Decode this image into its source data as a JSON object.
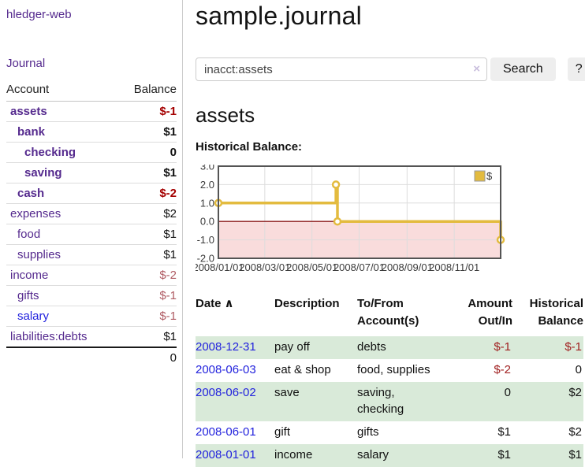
{
  "colors": {
    "purple_link": "#552a8e",
    "blue_link": "#2222dd",
    "negative_strong": "#a40000",
    "negative_muted": "#b05c64",
    "negative_table": "#a02020",
    "row_stripe_green": "#d9ead9",
    "chart_gold": "#e3bb3f"
  },
  "sidebar": {
    "app_title": "hledger-web",
    "nav_journal": "Journal",
    "accounts_table": {
      "headers": [
        "Account",
        "Balance"
      ],
      "rows": [
        {
          "account": "assets",
          "indent": 1,
          "bold": true,
          "balance": "$-1",
          "balance_style": "neg-strong"
        },
        {
          "account": "bank",
          "indent": 2,
          "bold": true,
          "balance": "$1",
          "balance_style": "pos"
        },
        {
          "account": "checking",
          "indent": 3,
          "bold": true,
          "balance": "0",
          "balance_style": "pos"
        },
        {
          "account": "saving",
          "indent": 3,
          "bold": true,
          "balance": "$1",
          "balance_style": "pos"
        },
        {
          "account": "cash",
          "indent": 2,
          "bold": true,
          "balance": "$-2",
          "balance_style": "neg-strong"
        },
        {
          "account": "expenses",
          "indent": 1,
          "bold": false,
          "balance": "$2",
          "balance_style": "pos"
        },
        {
          "account": "food",
          "indent": 2,
          "bold": false,
          "balance": "$1",
          "balance_style": "pos"
        },
        {
          "account": "supplies",
          "indent": 2,
          "bold": false,
          "balance": "$1",
          "balance_style": "pos"
        },
        {
          "account": "income",
          "indent": 1,
          "bold": false,
          "balance": "$-2",
          "balance_style": "neg-muted"
        },
        {
          "account": "gifts",
          "indent": 2,
          "bold": false,
          "balance": "$-1",
          "balance_style": "neg-muted"
        },
        {
          "account": "salary",
          "indent": 2,
          "bold": false,
          "balance": "$-1",
          "balance_style": "neg-muted",
          "link_color": "blue"
        },
        {
          "account": "liabilities:debts",
          "indent": 1,
          "bold": false,
          "balance": "$1",
          "balance_style": "pos"
        }
      ],
      "total": "0"
    }
  },
  "header": {
    "title": "sample.journal"
  },
  "search": {
    "value": "inacct:assets",
    "clear_icon": "×",
    "button_label": "Search",
    "help_label": "?"
  },
  "account_page": {
    "title": "assets",
    "chart_label": "Historical Balance:"
  },
  "chart_data": {
    "type": "line",
    "step": true,
    "title": "Historical Balance",
    "legend": "$",
    "legend_position": "top-right",
    "grid": true,
    "ylim": [
      -2.0,
      3.0
    ],
    "y_ticks": [
      "3.0",
      "2.0",
      "1.0",
      "0.0",
      "-1.0",
      "-2.0"
    ],
    "x_range": [
      "2008-01-01",
      "2008-12-31"
    ],
    "x_tick_dates": [
      "2008-01-01",
      "2008-03-01",
      "2008-05-01",
      "2008-07-01",
      "2008-09-01",
      "2008-11-01"
    ],
    "x_tick_labels": [
      "2008/01/01",
      "2008/03/01",
      "2008/05/01",
      "2008/07/01",
      "2008/09/01",
      "2008/11/01"
    ],
    "series": [
      {
        "name": "$",
        "color": "#e3bb3f",
        "points": [
          [
            "2008-01-01",
            1.0
          ],
          [
            "2008-06-01",
            2.0
          ],
          [
            "2008-06-03",
            0.0
          ],
          [
            "2008-12-31",
            -1.0
          ]
        ]
      }
    ],
    "negative_fill": "#f9dcdc",
    "zero_line_color": "#8b1a1a",
    "grid_color": "#dddddd",
    "border_color": "#545454"
  },
  "transactions": {
    "sort_glyph": "∧",
    "headers": [
      {
        "line1": "Date",
        "line2": "",
        "align": "left",
        "sortable": true
      },
      {
        "line1": "Description",
        "line2": "",
        "align": "left"
      },
      {
        "line1": "To/From",
        "line2": "Account(s)",
        "align": "left"
      },
      {
        "line1": "Amount",
        "line2": "Out/In",
        "align": "right"
      },
      {
        "line1": "Historical",
        "line2": "Balance",
        "align": "right"
      }
    ],
    "rows": [
      {
        "date": "2008-12-31",
        "description": "pay off",
        "accounts": "debts",
        "amount": "$-1",
        "amount_neg": true,
        "balance": "$-1",
        "balance_neg": true
      },
      {
        "date": "2008-06-03",
        "description": "eat & shop",
        "accounts": "food, supplies",
        "amount": "$-2",
        "amount_neg": true,
        "balance": "0",
        "balance_neg": false
      },
      {
        "date": "2008-06-02",
        "description": "save",
        "accounts": "saving, checking",
        "amount": "0",
        "amount_neg": false,
        "balance": "$2",
        "balance_neg": false
      },
      {
        "date": "2008-06-01",
        "description": "gift",
        "accounts": "gifts",
        "amount": "$1",
        "amount_neg": false,
        "balance": "$2",
        "balance_neg": false
      },
      {
        "date": "2008-01-01",
        "description": "income",
        "accounts": "salary",
        "amount": "$1",
        "amount_neg": false,
        "balance": "$1",
        "balance_neg": false
      }
    ]
  }
}
